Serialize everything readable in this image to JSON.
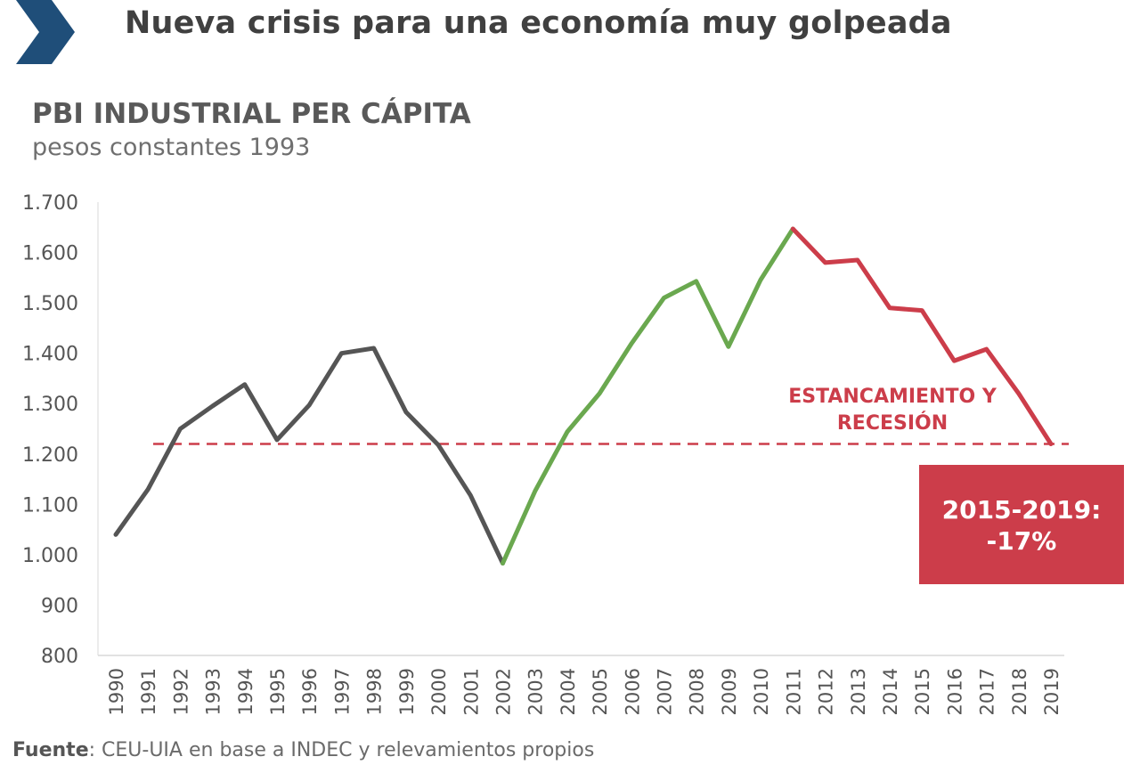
{
  "header": {
    "headline": "Nueva crisis para una economía muy golpeada",
    "chevron_color": "#1f4e79"
  },
  "source": {
    "label": "Fuente",
    "text": ": CEU-UIA en base a INDEC y relevamientos propios"
  },
  "chart_data": {
    "type": "line",
    "title": "PBI INDUSTRIAL PER CÁPITA",
    "subtitle": "pesos constantes 1993",
    "xlabel": "",
    "ylabel": "",
    "ylim": [
      800,
      1700
    ],
    "yticks": [
      800,
      900,
      1000,
      1100,
      1200,
      1300,
      1400,
      1500,
      1600,
      1700
    ],
    "ytick_labels": [
      "800",
      "900",
      "1.000",
      "1.100",
      "1.200",
      "1.300",
      "1.400",
      "1.500",
      "1.600",
      "1.700"
    ],
    "x": [
      1990,
      1991,
      1992,
      1993,
      1994,
      1995,
      1996,
      1997,
      1998,
      1999,
      2000,
      2001,
      2002,
      2003,
      2004,
      2005,
      2006,
      2007,
      2008,
      2009,
      2010,
      2011,
      2012,
      2013,
      2014,
      2015,
      2016,
      2017,
      2018,
      2019
    ],
    "values": [
      1040,
      1130,
      1250,
      1295,
      1338,
      1228,
      1297,
      1400,
      1410,
      1283,
      1218,
      1118,
      983,
      1126,
      1244,
      1320,
      1420,
      1510,
      1543,
      1413,
      1546,
      1647,
      1580,
      1585,
      1490,
      1485,
      1385,
      1408,
      1320,
      1220
    ],
    "segments": [
      {
        "from": 1990,
        "to": 2002,
        "color": "#555555"
      },
      {
        "from": 2002,
        "to": 2011,
        "color": "#6aa84f"
      },
      {
        "from": 2011,
        "to": 2019,
        "color": "#cc3d4a"
      }
    ],
    "reference_line": {
      "y": 1220,
      "color": "#cc3d4a",
      "style": "dashed"
    },
    "annotations": {
      "label_line1": "ESTANCAMIENTO Y",
      "label_line2": "RECESIÓN",
      "box_line1": "2015-2019:",
      "box_line2": "-17%",
      "color": "#cc3d4a"
    },
    "grid": false,
    "legend": "none"
  }
}
